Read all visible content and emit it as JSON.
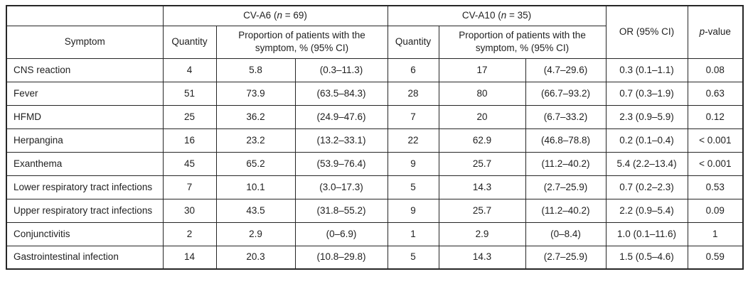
{
  "page": {
    "background_color": "#ffffff",
    "text_color": "#1f1f1f",
    "border_color": "#262626"
  },
  "table": {
    "header": {
      "cva6": {
        "prefix": "CV-A6 (",
        "n_var": "n",
        "suffix": " = 69)"
      },
      "cva10": {
        "prefix": "CV-A10 (",
        "n_var": "n",
        "suffix": " = 35)"
      },
      "or_label": "OR (95% CI)",
      "p_italic": "p",
      "p_suffix": "-value",
      "symptom_label": "Symptom",
      "quantity_label": "Quantity",
      "proportion_label": "Proportion of patients with the symptom, % (95% CI)"
    },
    "columns_order": [
      "symptom",
      "a6_qty",
      "a6_pct",
      "a6_ci",
      "a10_qty",
      "a10_pct",
      "a10_ci",
      "or",
      "p"
    ],
    "rows": [
      {
        "symptom": "CNS reaction",
        "a6_qty": "4",
        "a6_pct": "5.8",
        "a6_ci": "(0.3–11.3)",
        "a10_qty": "6",
        "a10_pct": "17",
        "a10_ci": "(4.7–29.6)",
        "or": "0.3 (0.1–1.1)",
        "p": "0.08"
      },
      {
        "symptom": "Fever",
        "a6_qty": "51",
        "a6_pct": "73.9",
        "a6_ci": "(63.5–84.3)",
        "a10_qty": "28",
        "a10_pct": "80",
        "a10_ci": "(66.7–93.2)",
        "or": "0.7 (0.3–1.9)",
        "p": "0.63"
      },
      {
        "symptom": "HFMD",
        "a6_qty": "25",
        "a6_pct": "36.2",
        "a6_ci": "(24.9–47.6)",
        "a10_qty": "7",
        "a10_pct": "20",
        "a10_ci": "(6.7–33.2)",
        "or": "2.3 (0.9–5.9)",
        "p": "0.12"
      },
      {
        "symptom": "Herpangina",
        "a6_qty": "16",
        "a6_pct": "23.2",
        "a6_ci": "(13.2–33.1)",
        "a10_qty": "22",
        "a10_pct": "62.9",
        "a10_ci": "(46.8–78.8)",
        "or": "0.2 (0.1–0.4)",
        "p": "< 0.001"
      },
      {
        "symptom": "Exanthema",
        "a6_qty": "45",
        "a6_pct": "65.2",
        "a6_ci": "(53.9–76.4)",
        "a10_qty": "9",
        "a10_pct": "25.7",
        "a10_ci": "(11.2–40.2)",
        "or": "5.4 (2.2–13.4)",
        "p": "< 0.001"
      },
      {
        "symptom": "Lower respiratory tract infections",
        "a6_qty": "7",
        "a6_pct": "10.1",
        "a6_ci": "(3.0–17.3)",
        "a10_qty": "5",
        "a10_pct": "14.3",
        "a10_ci": "(2.7–25.9)",
        "or": "0.7 (0.2–2.3)",
        "p": "0.53"
      },
      {
        "symptom": "Upper respiratory tract infections",
        "a6_qty": "30",
        "a6_pct": "43.5",
        "a6_ci": "(31.8–55.2)",
        "a10_qty": "9",
        "a10_pct": "25.7",
        "a10_ci": "(11.2–40.2)",
        "or": "2.2 (0.9–5.4)",
        "p": "0.09"
      },
      {
        "symptom": "Conjunctivitis",
        "a6_qty": "2",
        "a6_pct": "2.9",
        "a6_ci": "(0–6.9)",
        "a10_qty": "1",
        "a10_pct": "2.9",
        "a10_ci": "(0–8.4)",
        "or": "1.0 (0.1–11.6)",
        "p": "1"
      },
      {
        "symptom": "Gastrointestinal infection",
        "a6_qty": "14",
        "a6_pct": "20.3",
        "a6_ci": "(10.8–29.8)",
        "a10_qty": "5",
        "a10_pct": "14.3",
        "a10_ci": "(2.7–25.9)",
        "or": "1.5 (0.5–4.6)",
        "p": "0.59"
      }
    ]
  },
  "chart_data": {
    "type": "table",
    "columns": [
      "Symptom",
      "CV-A6 Quantity",
      "CV-A6 Proportion %",
      "CV-A6 95% CI",
      "CV-A10 Quantity",
      "CV-A10 Proportion %",
      "CV-A10 95% CI",
      "OR (95% CI)",
      "p-value"
    ],
    "group_headers": [
      "CV-A6 (n = 69)",
      "CV-A10 (n = 35)"
    ],
    "rows": [
      [
        "CNS reaction",
        4,
        5.8,
        "(0.3–11.3)",
        6,
        17,
        "(4.7–29.6)",
        "0.3 (0.1–1.1)",
        "0.08"
      ],
      [
        "Fever",
        51,
        73.9,
        "(63.5–84.3)",
        28,
        80,
        "(66.7–93.2)",
        "0.7 (0.3–1.9)",
        "0.63"
      ],
      [
        "HFMD",
        25,
        36.2,
        "(24.9–47.6)",
        7,
        20,
        "(6.7–33.2)",
        "2.3 (0.9–5.9)",
        "0.12"
      ],
      [
        "Herpangina",
        16,
        23.2,
        "(13.2–33.1)",
        22,
        62.9,
        "(46.8–78.8)",
        "0.2 (0.1–0.4)",
        "< 0.001"
      ],
      [
        "Exanthema",
        45,
        65.2,
        "(53.9–76.4)",
        9,
        25.7,
        "(11.2–40.2)",
        "5.4 (2.2–13.4)",
        "< 0.001"
      ],
      [
        "Lower respiratory tract infections",
        7,
        10.1,
        "(3.0–17.3)",
        5,
        14.3,
        "(2.7–25.9)",
        "0.7 (0.2–2.3)",
        "0.53"
      ],
      [
        "Upper respiratory tract infections",
        30,
        43.5,
        "(31.8–55.2)",
        9,
        25.7,
        "(11.2–40.2)",
        "2.2 (0.9–5.4)",
        "0.09"
      ],
      [
        "Conjunctivitis",
        2,
        2.9,
        "(0–6.9)",
        1,
        2.9,
        "(0–8.4)",
        "1.0 (0.1–11.6)",
        "1"
      ],
      [
        "Gastrointestinal infection",
        14,
        20.3,
        "(10.8–29.8)",
        5,
        14.3,
        "(2.7–25.9)",
        "1.5 (0.5–4.6)",
        "0.59"
      ]
    ]
  }
}
